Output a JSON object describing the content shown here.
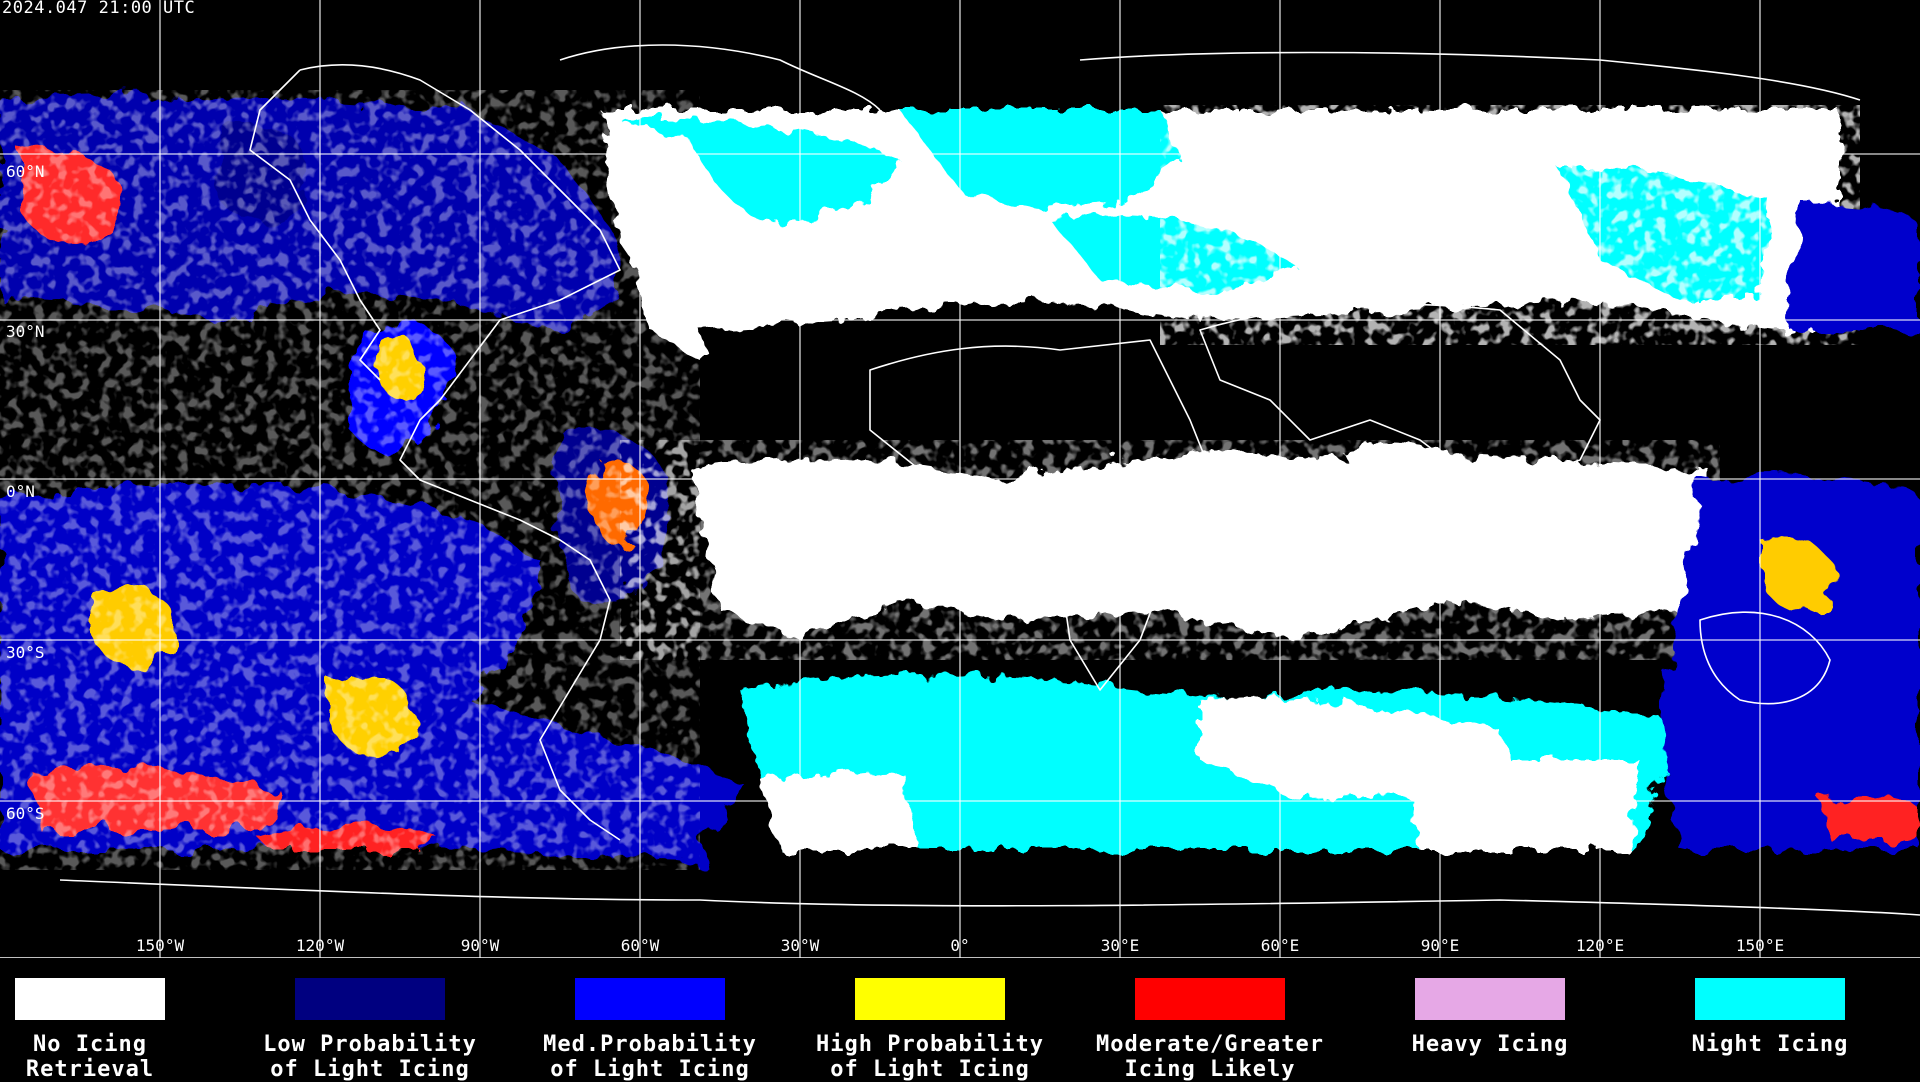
{
  "timestamp": "2024.047 21:00 UTC",
  "lat_labels": [
    "60°N",
    "30°N",
    "0°N",
    "30°S",
    "60°S"
  ],
  "lon_labels": [
    "150°W",
    "120°W",
    "90°W",
    "60°W",
    "30°W",
    "0°",
    "30°E",
    "60°E",
    "90°E",
    "120°E",
    "150°E"
  ],
  "legend": [
    {
      "label": "No Icing\nRetrieval",
      "color": "#ffffff"
    },
    {
      "label": "Low Probability\nof Light Icing",
      "color": "#000080"
    },
    {
      "label": "Med.Probability\nof Light Icing",
      "color": "#0000ff"
    },
    {
      "label": "High Probability\nof Light Icing",
      "color": "#ffff00"
    },
    {
      "label": "Moderate/Greater\nIcing Likely",
      "color": "#ff0000"
    },
    {
      "label": "Heavy Icing",
      "color": "#e6a8e6"
    },
    {
      "label": "Night Icing",
      "color": "#00ffff"
    }
  ],
  "colors": {
    "background": "#000000",
    "no_icing": "#ffffff",
    "low_prob": "#000080",
    "med_prob": "#0000ff",
    "high_prob": "#ffff00",
    "moderate": "#ff0000",
    "heavy": "#e6a8e6",
    "night": "#00ffff"
  }
}
